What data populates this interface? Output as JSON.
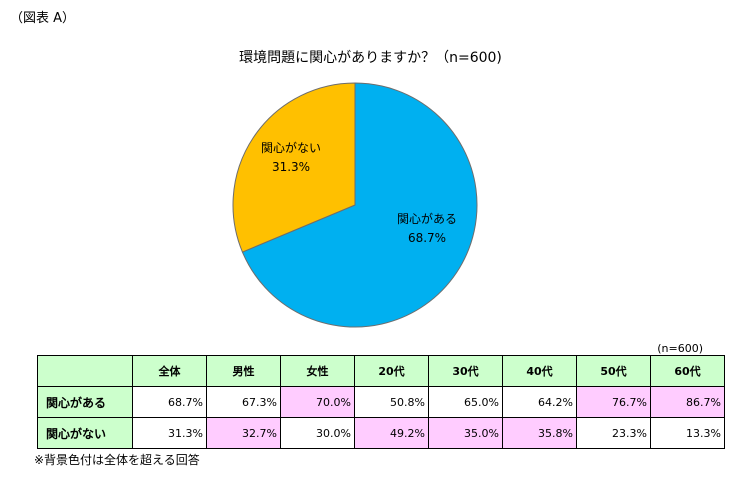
{
  "figure_label": "（図表 A）",
  "chart_data": {
    "type": "pie",
    "title": "環境問題に関心がありますか？（n=600)",
    "slices": [
      {
        "label": "関心がある",
        "percent_text": "68.7%",
        "value": 68.7,
        "color": "#00b0f0"
      },
      {
        "label": "関心がない",
        "percent_text": "31.3%",
        "value": 31.3,
        "color": "#ffc000"
      }
    ]
  },
  "table": {
    "n_note": "(n=600)",
    "columns": [
      "全体",
      "男性",
      "女性",
      "20代",
      "30代",
      "40代",
      "50代",
      "60代"
    ],
    "rows": [
      {
        "label": "関心がある",
        "values": [
          "68.7%",
          "67.3%",
          "70.0%",
          "50.8%",
          "65.0%",
          "64.2%",
          "76.7%",
          "86.7%"
        ]
      },
      {
        "label": "関心がない",
        "values": [
          "31.3%",
          "32.7%",
          "30.0%",
          "49.2%",
          "35.0%",
          "35.8%",
          "23.3%",
          "13.3%"
        ]
      }
    ],
    "highlight_color": "#ffccff",
    "header_color": "#ccffcc"
  },
  "footnote": "※背景色付は全体を超える回答"
}
